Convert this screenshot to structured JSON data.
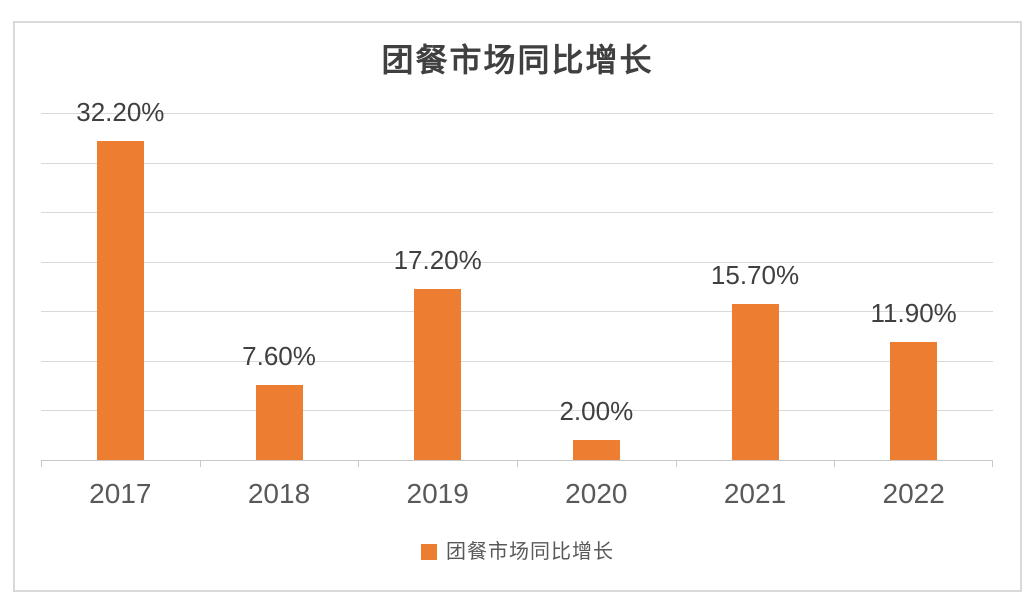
{
  "chart_data": {
    "type": "bar",
    "title": "团餐市场同比增长",
    "categories": [
      "2017",
      "2018",
      "2019",
      "2020",
      "2021",
      "2022"
    ],
    "values": [
      32.2,
      7.6,
      17.2,
      2.0,
      15.7,
      11.9
    ],
    "value_labels": [
      "32.20%",
      "7.60%",
      "17.20%",
      "2.00%",
      "15.70%",
      "11.90%"
    ],
    "series_name": "团餐市场同比增长",
    "xlabel": "",
    "ylabel": "",
    "ylim": [
      0,
      35
    ],
    "grid_step": 5,
    "grid": true,
    "y_axis_labels_visible": false,
    "legend_position": "bottom",
    "legend_entries": [
      "团餐市场同比增长"
    ]
  },
  "colors": {
    "bar": "#ED7D31",
    "gridline": "#D9D9D9",
    "axis_line": "#C8C8C8",
    "frame_border": "#D9D9D9",
    "title_text": "#404040",
    "value_label_text": "#404040",
    "tick_label_text": "#595959",
    "background": "#FFFFFF"
  }
}
